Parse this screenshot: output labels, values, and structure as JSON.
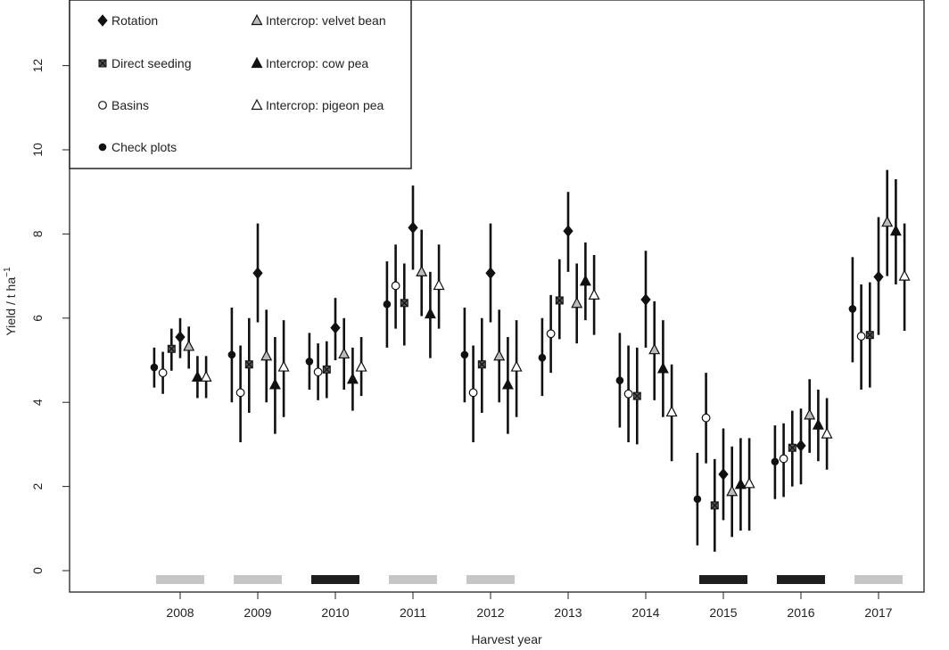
{
  "chart_data": {
    "type": "scatter",
    "title": "",
    "xlabel": "Harvest year",
    "ylabel_main": "Yield / t ha",
    "ylabel_sup": "−1",
    "ylim": [
      -0.5,
      13.5
    ],
    "yticks": [
      0,
      2,
      4,
      6,
      8,
      10,
      12
    ],
    "grid": false,
    "legend_position": "top-left",
    "categories": [
      "2008",
      "2009",
      "2010",
      "2011",
      "2012",
      "2013",
      "2014",
      "2015",
      "2016",
      "2017"
    ],
    "series": [
      {
        "name": "Rotation",
        "marker": "diamond",
        "fill": "#111111",
        "offset": 0,
        "values": [
          5.55,
          7.07,
          5.77,
          8.15,
          7.07,
          8.07,
          6.44,
          2.29,
          2.97,
          6.98
        ],
        "lower": [
          5.05,
          5.9,
          5.0,
          7.15,
          5.9,
          7.1,
          5.3,
          1.2,
          2.05,
          5.6
        ],
        "upper": [
          6.0,
          8.25,
          6.48,
          9.15,
          8.25,
          9.0,
          7.6,
          3.38,
          3.85,
          8.4
        ]
      },
      {
        "name": "Intercrop: velvet bean",
        "marker": "triangle",
        "fill": "#bbbbbb",
        "offset": 1,
        "values": [
          5.33,
          5.1,
          5.15,
          7.1,
          5.1,
          6.35,
          5.25,
          1.88,
          3.7,
          8.28
        ],
        "lower": [
          4.8,
          4.0,
          4.3,
          6.05,
          4.0,
          5.4,
          4.05,
          0.8,
          2.8,
          7.0
        ],
        "upper": [
          5.8,
          6.2,
          6.0,
          8.1,
          6.2,
          7.3,
          6.4,
          2.95,
          4.55,
          9.52
        ]
      },
      {
        "name": "Direct seeding",
        "marker": "square",
        "fill": "#555555",
        "offset": -1,
        "values": [
          5.27,
          4.9,
          4.78,
          6.36,
          4.9,
          6.42,
          4.15,
          1.55,
          2.92,
          5.6
        ],
        "lower": [
          4.75,
          3.75,
          4.1,
          5.35,
          3.75,
          5.5,
          3.0,
          0.45,
          2.0,
          4.35
        ],
        "upper": [
          5.75,
          6.0,
          5.45,
          7.3,
          6.0,
          7.4,
          5.3,
          2.65,
          3.8,
          6.85
        ]
      },
      {
        "name": "Intercrop: cow pea",
        "marker": "triangle",
        "fill": "#111111",
        "offset": 2,
        "values": [
          4.6,
          4.42,
          4.55,
          6.1,
          4.42,
          6.88,
          4.8,
          2.05,
          3.46,
          8.07
        ],
        "lower": [
          4.1,
          3.25,
          3.8,
          5.05,
          3.25,
          5.95,
          3.65,
          0.95,
          2.6,
          6.8
        ],
        "upper": [
          5.1,
          5.55,
          5.3,
          7.1,
          5.55,
          7.8,
          5.95,
          3.15,
          4.3,
          9.3
        ]
      },
      {
        "name": "Basins",
        "marker": "circle",
        "fill": "#ffffff",
        "offset": -2,
        "values": [
          4.7,
          4.23,
          4.72,
          6.77,
          4.23,
          5.63,
          4.2,
          3.63,
          2.66,
          5.57
        ],
        "lower": [
          4.2,
          3.05,
          4.05,
          5.75,
          3.05,
          4.7,
          3.05,
          2.55,
          1.75,
          4.3
        ],
        "upper": [
          5.2,
          5.35,
          5.4,
          7.75,
          5.35,
          6.55,
          5.35,
          4.7,
          3.5,
          6.8
        ]
      },
      {
        "name": "Intercrop: pigeon pea",
        "marker": "triangle",
        "fill": "#ffffff",
        "offset": 3,
        "values": [
          4.6,
          4.84,
          4.84,
          6.78,
          4.84,
          6.55,
          3.77,
          2.07,
          3.25,
          7.0
        ],
        "lower": [
          4.1,
          3.65,
          4.15,
          5.75,
          3.65,
          5.6,
          2.6,
          0.95,
          2.4,
          5.7
        ],
        "upper": [
          5.1,
          5.95,
          5.55,
          7.75,
          5.95,
          7.5,
          4.9,
          3.15,
          4.1,
          8.25
        ]
      },
      {
        "name": "Check plots",
        "marker": "dot",
        "fill": "#111111",
        "offset": -3,
        "values": [
          4.83,
          5.13,
          4.97,
          6.33,
          5.13,
          5.06,
          4.52,
          1.7,
          2.59,
          6.22
        ],
        "lower": [
          4.35,
          4.0,
          4.3,
          5.3,
          4.0,
          4.15,
          3.4,
          0.6,
          1.7,
          4.95
        ],
        "upper": [
          5.3,
          6.25,
          5.65,
          7.35,
          6.25,
          6.0,
          5.65,
          2.8,
          3.45,
          7.45
        ]
      }
    ],
    "season_bars": {
      "values": [
        "light",
        "light",
        "dark",
        "light",
        "light",
        "none",
        "none",
        "dark",
        "dark",
        "light"
      ],
      "colors": {
        "light": "#c6c6c6",
        "dark": "#1e1e1e"
      }
    }
  }
}
